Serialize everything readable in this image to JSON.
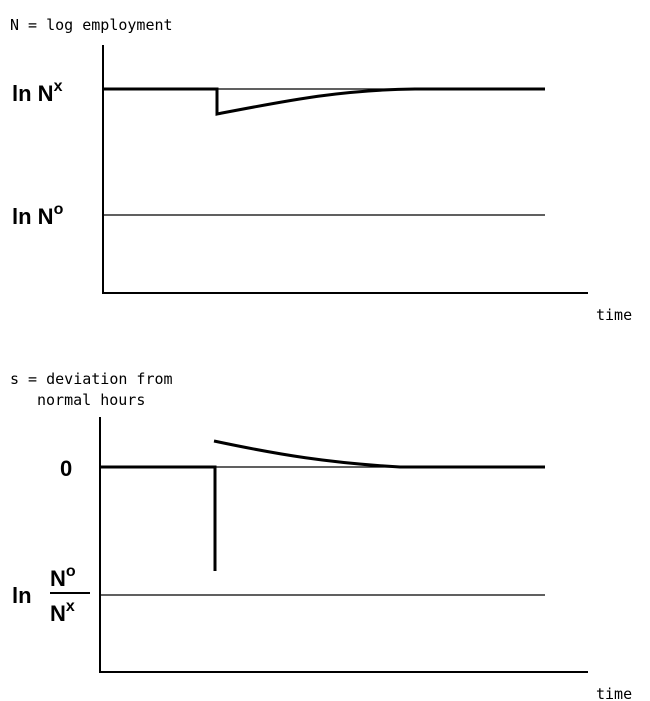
{
  "top_panel": {
    "title": "N = log employment",
    "upper_level_label": {
      "base": "ln N",
      "superscript": "x"
    },
    "lower_level_label": {
      "base": "ln N",
      "superscript": "o"
    },
    "x_axis_label": "time"
  },
  "bottom_panel": {
    "title_line1": "s = deviation from",
    "title_line2": "normal hours",
    "zero_label": "0",
    "lower_level_label": {
      "prefix": "ln",
      "numerator": {
        "base": "N",
        "superscript": "o"
      },
      "denominator": {
        "base": "N",
        "superscript": "x"
      }
    },
    "x_axis_label": "time"
  }
}
